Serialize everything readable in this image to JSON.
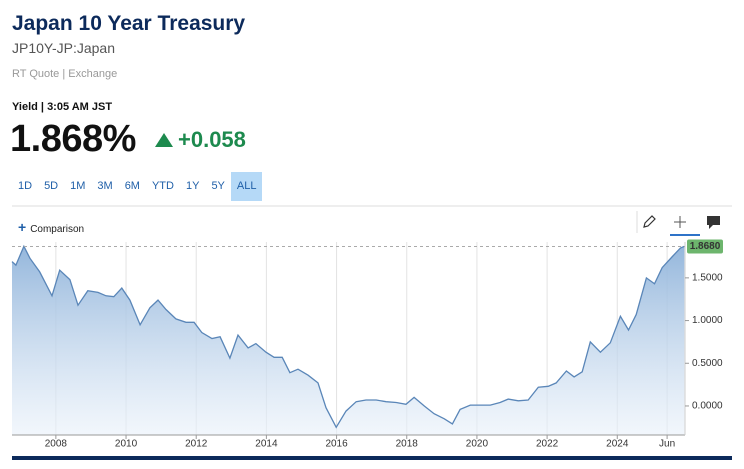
{
  "header": {
    "title": "Japan 10 Year Treasury",
    "symbol": "JP10Y-JP:Japan",
    "source": "RT Quote | Exchange"
  },
  "quote": {
    "label": "Yield | 3:05 AM JST",
    "price": "1.868%",
    "change": "+0.058"
  },
  "ranges": {
    "items": [
      "1D",
      "5D",
      "1M",
      "3M",
      "6M",
      "YTD",
      "1Y",
      "5Y",
      "ALL"
    ],
    "active": 8
  },
  "comparison": "Comparison",
  "chart_data": {
    "type": "area",
    "color": "#5a86b8",
    "x": [
      2006.75,
      2006.86,
      2007.09,
      2007.26,
      2007.54,
      2007.89,
      2008.11,
      2008.4,
      2008.63,
      2008.91,
      2009.2,
      2009.43,
      2009.65,
      2009.88,
      2010.11,
      2010.4,
      2010.68,
      2010.91,
      2011.14,
      2011.42,
      2011.71,
      2011.94,
      2012.16,
      2012.45,
      2012.68,
      2012.96,
      2013.19,
      2013.48,
      2013.7,
      2013.99,
      2014.22,
      2014.45,
      2014.67,
      2014.9,
      2015.19,
      2015.47,
      2015.7,
      2015.99,
      2016.27,
      2016.56,
      2016.84,
      2017.13,
      2017.41,
      2017.7,
      2017.98,
      2018.21,
      2018.5,
      2018.78,
      2019.07,
      2019.3,
      2019.52,
      2019.81,
      2020.09,
      2020.38,
      2020.66,
      2020.89,
      2021.18,
      2021.46,
      2021.75,
      2022.03,
      2022.26,
      2022.55,
      2022.77,
      2023.0,
      2023.23,
      2023.52,
      2023.8,
      2024.09,
      2024.32,
      2024.54,
      2024.83,
      2025.06,
      2025.28,
      2025.57,
      2025.8,
      2025.91
    ],
    "values": [
      1.69,
      1.65,
      1.87,
      1.73,
      1.57,
      1.29,
      1.59,
      1.48,
      1.18,
      1.35,
      1.33,
      1.29,
      1.28,
      1.38,
      1.24,
      0.95,
      1.15,
      1.24,
      1.13,
      1.02,
      0.98,
      0.98,
      0.86,
      0.79,
      0.81,
      0.56,
      0.83,
      0.68,
      0.73,
      0.63,
      0.57,
      0.57,
      0.39,
      0.43,
      0.36,
      0.27,
      -0.02,
      -0.25,
      -0.06,
      0.05,
      0.07,
      0.07,
      0.05,
      0.04,
      0.02,
      0.1,
      0.0,
      -0.09,
      -0.15,
      -0.21,
      -0.04,
      0.01,
      0.01,
      0.01,
      0.04,
      0.08,
      0.06,
      0.07,
      0.22,
      0.23,
      0.27,
      0.41,
      0.34,
      0.4,
      0.75,
      0.63,
      0.74,
      1.05,
      0.89,
      1.07,
      1.5,
      1.43,
      1.62,
      1.75,
      1.85,
      1.868
    ],
    "last_label": "1.8680",
    "xlim": [
      2006.75,
      2025.93
    ],
    "ylim": [
      -0.34,
      1.92
    ],
    "xticks": [
      2008,
      2010,
      2012,
      2014,
      2016,
      2018,
      2020,
      2022,
      2024,
      {
        "value": 2025.42,
        "label": "Jun"
      }
    ],
    "yticks": [
      {
        "value": 1.5,
        "label": "1.5000"
      },
      {
        "value": 1.0,
        "label": "1.0000"
      },
      {
        "value": 0.5,
        "label": "0.5000"
      },
      {
        "value": 0.0,
        "label": "0.0000"
      }
    ],
    "grid": true
  }
}
